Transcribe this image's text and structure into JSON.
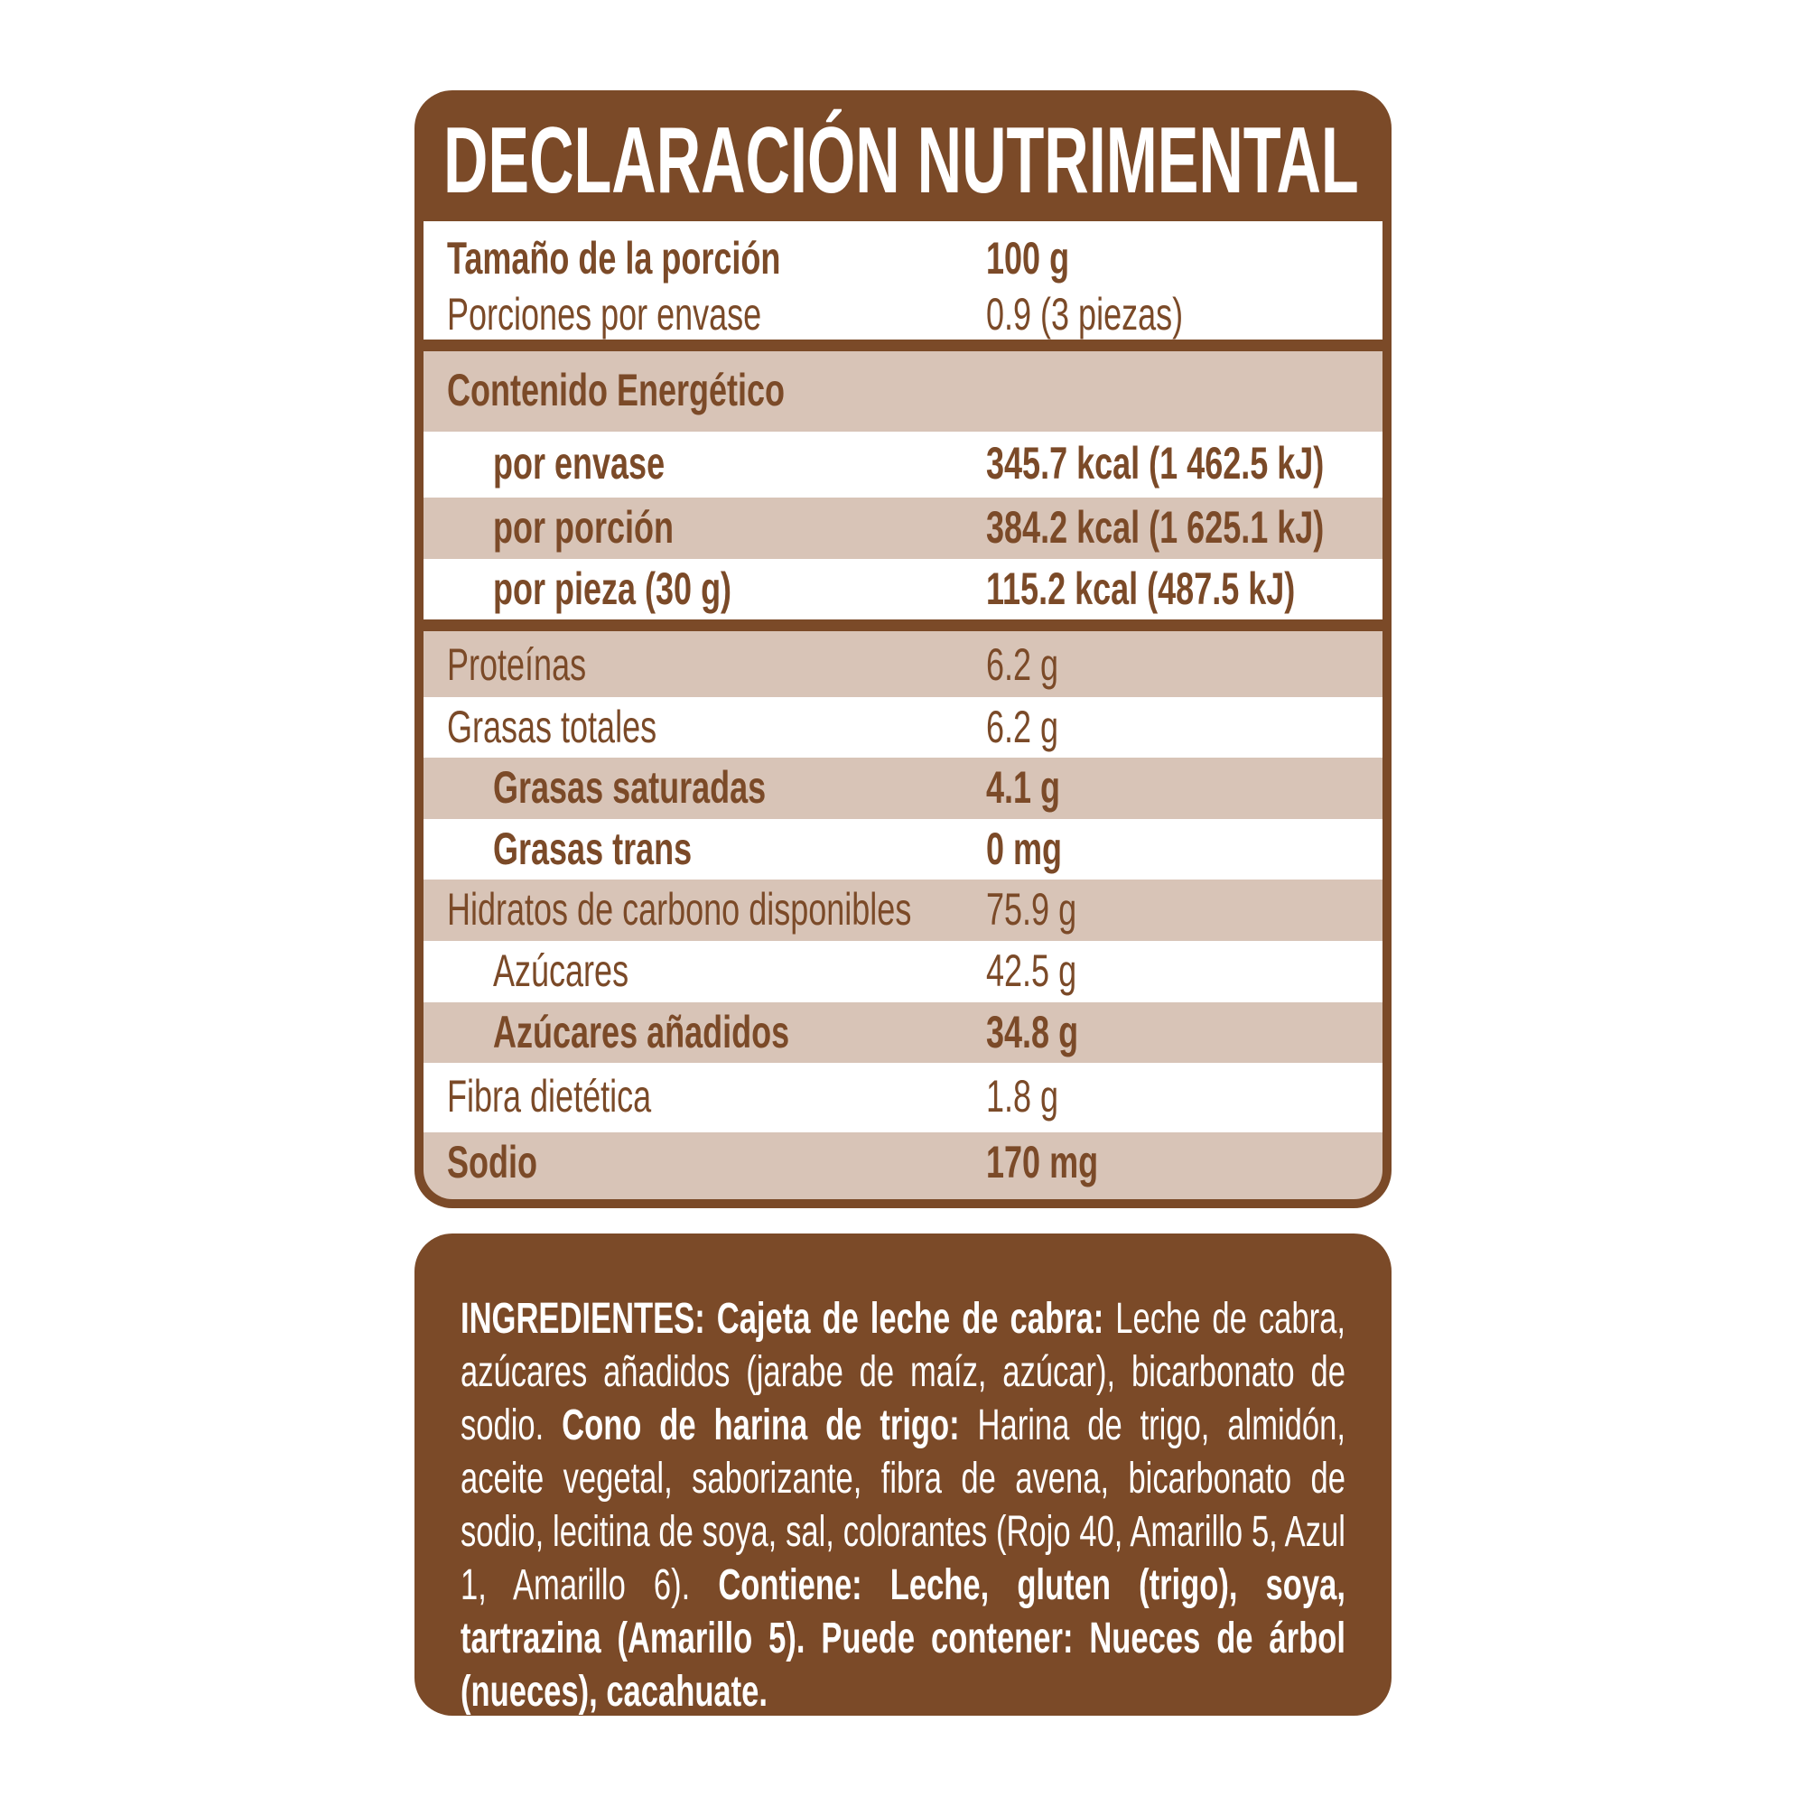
{
  "colors": {
    "brand_brown": "#7b4a28",
    "row_tan": "#d8c4b7",
    "row_white": "#ffffff"
  },
  "title": "DECLARACIÓN NUTRIMENTAL",
  "serving": {
    "size_label": "Tamaño de la porción",
    "size_value": "100 g",
    "servings_label": "Porciones por envase",
    "servings_value": "0.9 (3 piezas)"
  },
  "energy": {
    "header": "Contenido Energético",
    "rows": [
      {
        "label": "por envase",
        "value": "345.7 kcal (1 462.5 kJ)"
      },
      {
        "label": "por porción",
        "value": "384.2 kcal (1 625.1 kJ)"
      },
      {
        "label": "por pieza (30 g)",
        "value": "115.2 kcal (487.5 kJ)"
      }
    ]
  },
  "nutrients": [
    {
      "label": "Proteínas",
      "value": "6.2 g"
    },
    {
      "label": "Grasas totales",
      "value": "6.2 g"
    },
    {
      "label": "Grasas saturadas",
      "value": "4.1 g"
    },
    {
      "label": "Grasas trans",
      "value": "0 mg"
    },
    {
      "label": "Hidratos de carbono disponibles",
      "value": "75.9 g"
    },
    {
      "label": "Azúcares",
      "value": "42.5 g"
    },
    {
      "label": "Azúcares añadidos",
      "value": "34.8 g"
    },
    {
      "label": "Fibra dietética",
      "value": "1.8 g"
    },
    {
      "label": "Sodio",
      "value": "170 mg"
    }
  ],
  "ingredients": {
    "p1_bold": "INGREDIENTES: Cajeta de leche de cabra:",
    "p1": " Leche de cabra, azúcares añadidos (jarabe de maíz, azúcar), bicarbonato de sodio.",
    "p2_bold": "Cono de harina de trigo:",
    "p2": " Harina de trigo, almidón, aceite vegetal, saborizante, fibra de avena, bicarbonato de sodio, lecitina de soya, sal, colorantes (Rojo 40, Amarillo 5, Azul 1, Amarillo 6).",
    "p3_bold": " Contiene: Leche, gluten (trigo), soya, tartrazina (Amarillo 5). Puede contener: Nueces de árbol (nueces), cacahuate."
  }
}
